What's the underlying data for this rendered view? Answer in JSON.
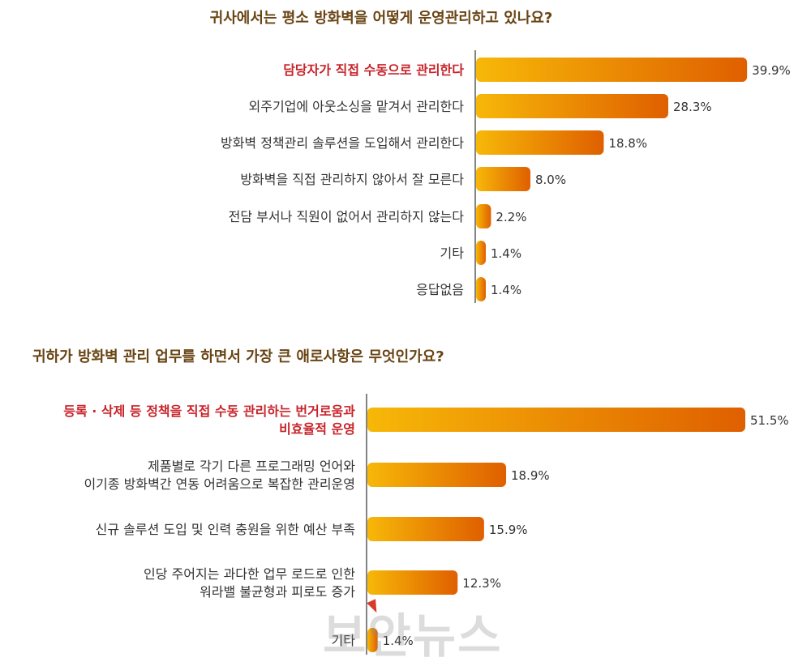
{
  "colors": {
    "title": "#6a4514",
    "label": "#333333",
    "highlight": "#c8242b",
    "bar_start": "#f7b808",
    "bar_end": "#df5f00",
    "axis": "#333333"
  },
  "chart_data": [
    {
      "type": "bar",
      "orientation": "horizontal",
      "title": "귀사에서는 평소 방화벽을 어떻게 운영관리하고 있나요?",
      "categories": [
        "담당자가 직접 수동으로 관리한다",
        "외주기업에 아웃소싱을 맡겨서 관리한다",
        "방화벽 정책관리 솔루션을 도입해서 관리한다",
        "방화벽을 직접 관리하지 않아서 잘 모른다",
        "전담 부서나 직원이 없어서 관리하지 않는다",
        "기타",
        "응답없음"
      ],
      "values": [
        39.9,
        28.3,
        18.8,
        8.0,
        2.2,
        1.4,
        1.4
      ],
      "value_labels": [
        "39.9%",
        "28.3%",
        "18.8%",
        "8.0%",
        "2.2%",
        "1.4%",
        "1.4%"
      ],
      "highlight_index": 0,
      "xlim": [
        0,
        40
      ]
    },
    {
      "type": "bar",
      "orientation": "horizontal",
      "title": "귀하가 방화벽 관리 업무를 하면서 가장 큰 애로사항은 무엇인가요?",
      "categories": [
        [
          "등록 · 삭제 등 정책을 직접 수동 관리하는 번거로움과",
          "비효율적 운영"
        ],
        [
          "제품별로 각기 다른 프로그래밍 언어와",
          "이기종 방화벽간 연동 어려움으로 복잡한 관리운영"
        ],
        [
          "신규 솔루션 도입 및 인력 충원을 위한 예산 부족"
        ],
        [
          "인당 주어지는 과다한 업무 로드로 인한",
          "워라밸 불균형과 피로도 증가"
        ],
        [
          "기타"
        ]
      ],
      "values": [
        51.5,
        18.9,
        15.9,
        12.3,
        1.4
      ],
      "value_labels": [
        "51.5%",
        "18.9%",
        "15.9%",
        "12.3%",
        "1.4%"
      ],
      "highlight_index": 0,
      "xlim": [
        0,
        52
      ]
    }
  ],
  "watermark": "보안뉴스"
}
